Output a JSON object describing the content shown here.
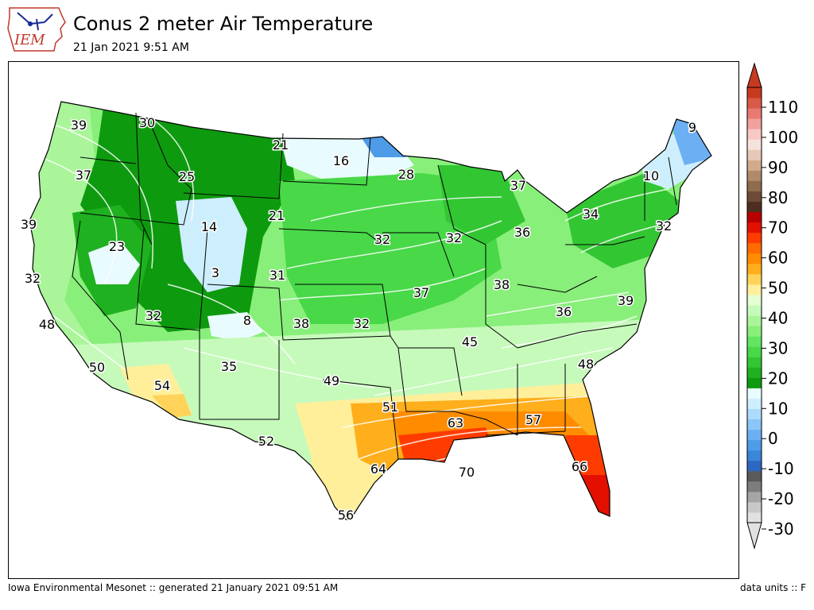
{
  "header": {
    "logo_text": "IEM",
    "title": "Conus 2 meter Air Temperature",
    "subtitle": "21 Jan 2021 9:51 AM"
  },
  "map": {
    "labels": [
      {
        "id": "wa-w",
        "value": "39"
      },
      {
        "id": "wa-e",
        "value": "30"
      },
      {
        "id": "or-n",
        "value": "37"
      },
      {
        "id": "mt-e",
        "value": "21"
      },
      {
        "id": "nd",
        "value": "16"
      },
      {
        "id": "mn",
        "value": "28"
      },
      {
        "id": "id",
        "value": "25"
      },
      {
        "id": "wy",
        "value": "14"
      },
      {
        "id": "sd",
        "value": "21"
      },
      {
        "id": "ca-n",
        "value": "39"
      },
      {
        "id": "nv",
        "value": "23"
      },
      {
        "id": "ca-c",
        "value": "32"
      },
      {
        "id": "ut",
        "value": "3"
      },
      {
        "id": "co-w",
        "value": "31"
      },
      {
        "id": "ne",
        "value": "32"
      },
      {
        "id": "ia",
        "value": "32"
      },
      {
        "id": "wi",
        "value": "37"
      },
      {
        "id": "mi",
        "value": "36"
      },
      {
        "id": "me",
        "value": "9"
      },
      {
        "id": "vt",
        "value": "10"
      },
      {
        "id": "ny",
        "value": "34"
      },
      {
        "id": "nj",
        "value": "32"
      },
      {
        "id": "ca-s",
        "value": "48"
      },
      {
        "id": "az-n",
        "value": "32"
      },
      {
        "id": "co-s",
        "value": "8"
      },
      {
        "id": "ks-w",
        "value": "38"
      },
      {
        "id": "ks",
        "value": "32"
      },
      {
        "id": "mo",
        "value": "37"
      },
      {
        "id": "in",
        "value": "38"
      },
      {
        "id": "wv",
        "value": "36"
      },
      {
        "id": "va",
        "value": "39"
      },
      {
        "id": "ky",
        "value": "45"
      },
      {
        "id": "nc",
        "value": "48"
      },
      {
        "id": "ca-se",
        "value": "50"
      },
      {
        "id": "az",
        "value": "54"
      },
      {
        "id": "nm",
        "value": "35"
      },
      {
        "id": "ok",
        "value": "49"
      },
      {
        "id": "ar",
        "value": "51"
      },
      {
        "id": "ms",
        "value": "63"
      },
      {
        "id": "ga",
        "value": "57"
      },
      {
        "id": "tx-w",
        "value": "52"
      },
      {
        "id": "tx-e",
        "value": "64"
      },
      {
        "id": "la",
        "value": "70"
      },
      {
        "id": "fl",
        "value": "66"
      },
      {
        "id": "tx-s",
        "value": "56"
      }
    ]
  },
  "colorbar": {
    "ticks": [
      "110",
      "100",
      "90",
      "80",
      "70",
      "60",
      "50",
      "40",
      "30",
      "20",
      "10",
      "0",
      "-10",
      "-20",
      "-30"
    ],
    "colors": [
      "#e1e1e1",
      "#c8c8c8",
      "#a5a5a5",
      "#7d7d7d",
      "#5a5a5a",
      "#2c68c1",
      "#3a86d9",
      "#4e9be8",
      "#6cb0f3",
      "#8cc5f7",
      "#acdbfb",
      "#cdeefd",
      "#e8fbff",
      "#0e9a0e",
      "#1fb11f",
      "#33c633",
      "#48d848",
      "#62e562",
      "#88ef7a",
      "#aaf59a",
      "#c6fabb",
      "#e4ffd2",
      "#ffef9a",
      "#ffd35a",
      "#ffae1c",
      "#ff8c00",
      "#ff6b00",
      "#ff3c00",
      "#e31000",
      "#b80000",
      "#4f2e22",
      "#6d4b36",
      "#8e6c4d",
      "#b08b69",
      "#d2aa8c",
      "#e7c8b7",
      "#f6e2dc",
      "#f8c8c5",
      "#f1a19d",
      "#e87a72",
      "#d85a48",
      "#c83a20"
    ]
  },
  "footer": {
    "left": "Iowa Environmental Mesonet :: generated 21 January 2021 09:51 AM",
    "right": "data units :: F"
  }
}
